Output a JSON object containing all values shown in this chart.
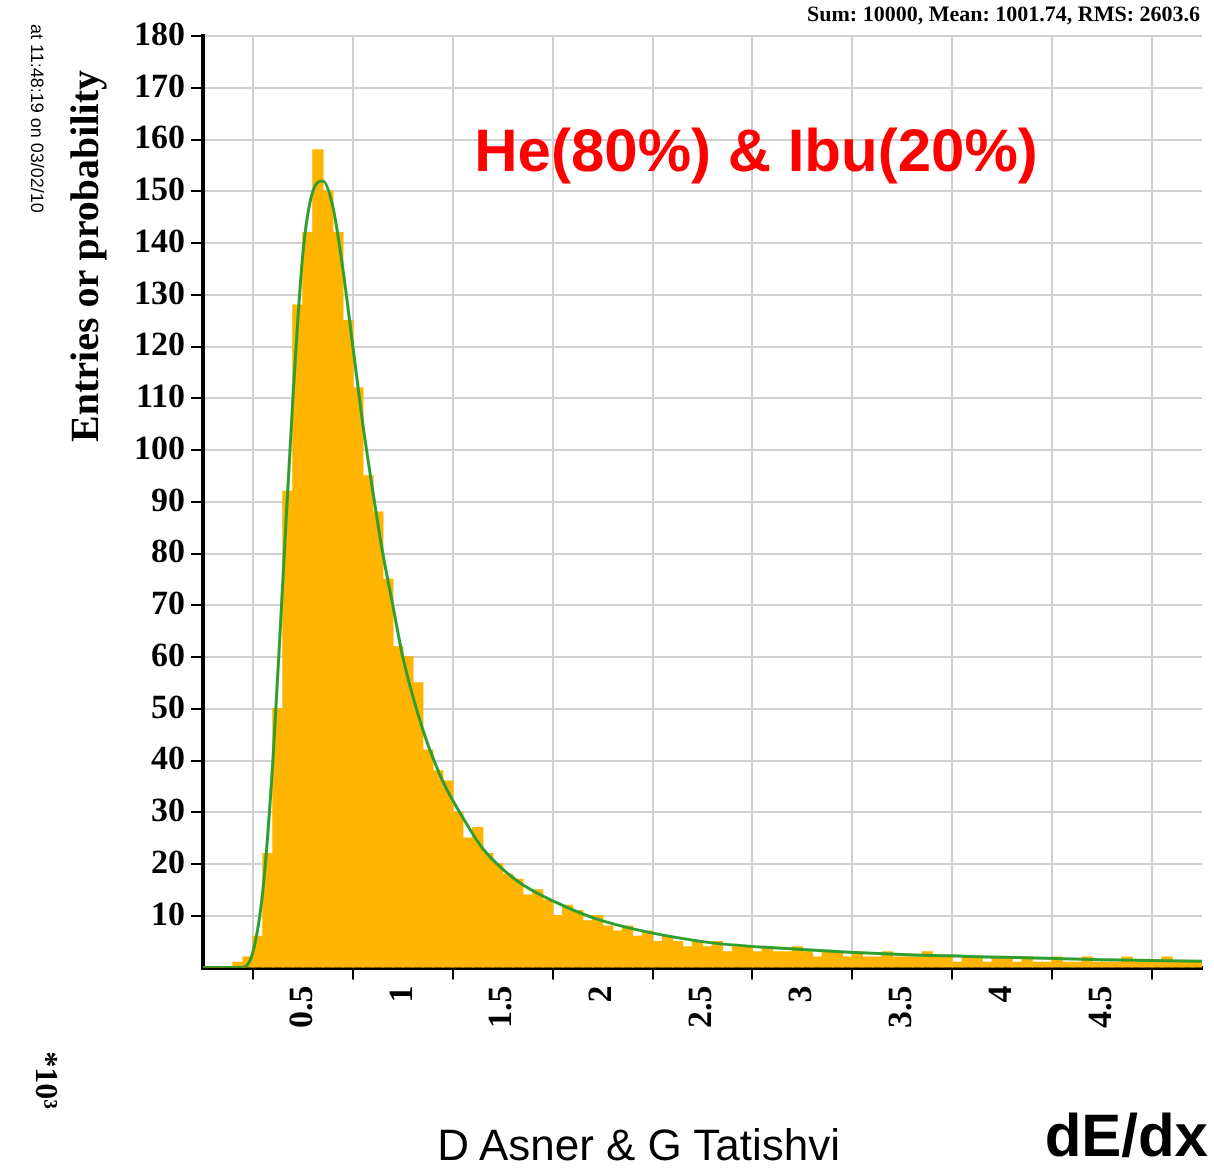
{
  "chart_data": {
    "type": "histogram",
    "title": "He(80%) & Ibu(20%)",
    "xlabel": "dE/dx",
    "ylabel": "Entries or probability",
    "annotations": [
      "Sum: 10000, Mean: 1001.74, RMS: 2603.6",
      "at 11:48:19 on 03/02/10",
      "*10³",
      "D Asner & G Tatishvi"
    ],
    "bins": [
      0,
      0.05,
      0.1,
      0.15,
      0.2,
      0.25,
      0.3,
      0.35,
      0.4,
      0.45,
      0.5,
      0.55,
      0.6,
      0.65,
      0.7,
      0.75,
      0.8,
      0.85,
      0.9,
      0.95,
      1,
      1.05,
      1.1,
      1.15,
      1.2,
      1.25,
      1.3,
      1.35,
      1.4,
      1.45,
      1.5,
      1.55,
      1.6,
      1.65,
      1.7,
      1.75,
      1.8,
      1.85,
      1.9,
      1.95,
      2,
      2.05,
      2.1,
      2.15,
      2.2,
      2.25,
      2.3,
      2.35,
      2.4,
      2.45,
      2.5,
      2.55,
      2.6,
      2.65,
      2.7,
      2.75,
      2.8,
      2.85,
      2.9,
      2.95,
      3,
      3.05,
      3.1,
      3.15,
      3.2,
      3.25,
      3.3,
      3.35,
      3.4,
      3.45,
      3.5,
      3.55,
      3.6,
      3.65,
      3.7,
      3.75,
      3.8,
      3.85,
      3.9,
      3.95,
      4,
      4.05,
      4.1,
      4.15,
      4.2,
      4.25,
      4.3,
      4.35,
      4.4,
      4.45,
      4.5,
      4.55,
      4.6,
      4.65,
      4.7,
      4.75,
      4.8,
      4.85,
      4.9,
      4.95,
      5
    ],
    "values": [
      0,
      0,
      0,
      1,
      2,
      6,
      22,
      50,
      92,
      128,
      142,
      158,
      150,
      142,
      125,
      112,
      95,
      88,
      75,
      62,
      60,
      55,
      42,
      38,
      36,
      30,
      25,
      27,
      22,
      20,
      18,
      17,
      14,
      15,
      13,
      10,
      12,
      11,
      9,
      10,
      8,
      7,
      8,
      6,
      7,
      5,
      6,
      5,
      4,
      5,
      4,
      5,
      3,
      4,
      4,
      3,
      4,
      3,
      3,
      4,
      3,
      2,
      3,
      3,
      2,
      3,
      2,
      2,
      3,
      2,
      2,
      2,
      3,
      2,
      2,
      1,
      2,
      2,
      1,
      2,
      2,
      1,
      2,
      1,
      1,
      2,
      1,
      1,
      2,
      1,
      1,
      1,
      2,
      1,
      1,
      1,
      2,
      1,
      1,
      1
    ],
    "color": "#ffb400",
    "series": [
      {
        "type": "line",
        "color": "#2e9e2e",
        "x": [
          0,
          0.2,
          0.25,
          0.3,
          0.35,
          0.4,
          0.45,
          0.5,
          0.55,
          0.6,
          0.65,
          0.7,
          0.75,
          0.8,
          0.85,
          0.9,
          0.95,
          1,
          1.1,
          1.2,
          1.3,
          1.4,
          1.5,
          1.6,
          1.8,
          2,
          2.5,
          3,
          3.5,
          4,
          4.5,
          5
        ],
        "values": [
          0,
          0,
          3,
          15,
          40,
          75,
          110,
          138,
          150,
          152,
          147,
          135,
          120,
          105,
          92,
          80,
          70,
          60,
          46,
          36,
          29,
          23,
          19,
          16,
          12,
          9,
          5,
          3.5,
          2.5,
          2,
          1.5,
          1.2
        ]
      }
    ],
    "xlim": [
      0,
      5
    ],
    "xticks": [
      0.5,
      1,
      1.5,
      2,
      2.5,
      3,
      3.5,
      4,
      4.5
    ],
    "ylim": [
      0,
      180
    ],
    "yticks": [
      10,
      20,
      30,
      40,
      50,
      60,
      70,
      80,
      90,
      100,
      110,
      120,
      130,
      140,
      150,
      160,
      170,
      180
    ],
    "grid": true,
    "legend": false
  }
}
